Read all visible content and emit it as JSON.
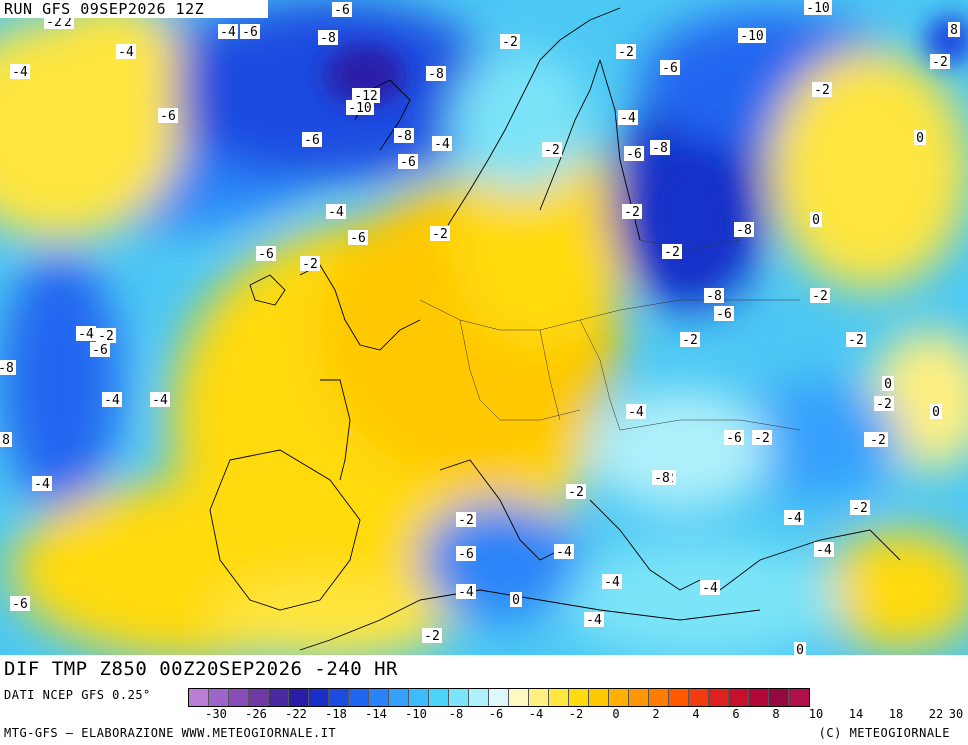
{
  "run_title": "RUN GFS 09SEP2026 12Z",
  "field_title": "DIF TMP Z850 00Z20SEP2026 -240 HR",
  "data_source": "DATI NCEP GFS 0.25°",
  "credit": "MTG-GFS – ELABORAZIONE WWW.METEOGIORNALE.IT",
  "copyright": "(C) METEOGIORNALE",
  "colorbar": {
    "colors": [
      "#b87fd4",
      "#a064c8",
      "#8a4cb6",
      "#6f3aa6",
      "#4a2aa0",
      "#2a1ea8",
      "#1830c8",
      "#1c4ce0",
      "#2066f0",
      "#2a84f8",
      "#34a0fc",
      "#3cbcfc",
      "#4cd4f8",
      "#7ce4f8",
      "#b0f0fa",
      "#dcf8fa",
      "#fff8c0",
      "#fff080",
      "#ffe640",
      "#ffda10",
      "#ffc800",
      "#ffb000",
      "#ff9800",
      "#ff7c00",
      "#ff5a00",
      "#f03c10",
      "#e02020",
      "#c8102c",
      "#b00838",
      "#960840",
      "#b0104a"
    ],
    "ticks": [
      "-30",
      "-26",
      "-22",
      "-18",
      "-14",
      "-10",
      "-8",
      "-6",
      "-4",
      "-2",
      "0",
      "2",
      "4",
      "6",
      "8",
      "10",
      "14",
      "18",
      "22",
      "30"
    ]
  },
  "contour_labels": [
    "-2",
    "-6",
    "-4",
    "-4",
    "-6",
    "-8",
    "-12",
    "-10",
    "-8",
    "-2",
    "-2",
    "-6",
    "-10",
    "-4",
    "-6",
    "-4",
    "-6",
    "-8",
    "-4",
    "-6",
    "-2",
    "-6",
    "-2",
    "-6",
    "-8",
    "-4",
    "-2",
    "-8",
    "-2",
    "-10",
    "-6",
    "-2",
    "0",
    "-2",
    "-2",
    "0",
    "-8",
    "-6",
    "-2",
    "-4",
    "-2",
    "-6",
    "-4",
    "-4",
    "-2",
    "-2",
    "0",
    "0",
    "-2",
    "-2",
    "-4",
    "-2",
    "-6",
    "-2",
    "-2",
    "-4",
    "-4",
    "-4",
    "0",
    "-2",
    "-6",
    "-4",
    "-4",
    "-2",
    "-4",
    "-4",
    "-2",
    "0",
    "-4",
    "-6",
    "-2",
    "-8",
    "-8",
    "8",
    "8",
    "-10",
    "-2"
  ]
}
